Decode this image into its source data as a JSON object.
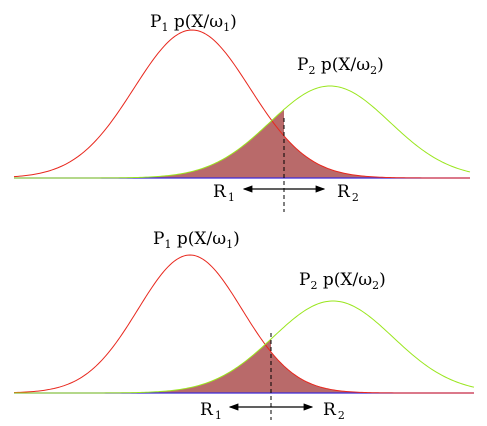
{
  "panels": [
    {
      "curve1_label": {
        "prefix": "P",
        "prefix_sub": "1",
        "mid": " p(X/ω",
        "sub": "1",
        "suffix": ")"
      },
      "curve2_label": {
        "prefix": "P",
        "prefix_sub": "2",
        "mid": " p(X/ω",
        "sub": "2",
        "suffix": ")"
      },
      "region_left": {
        "main": "R",
        "sub": "1"
      },
      "region_right": {
        "main": "R",
        "sub": "2"
      }
    },
    {
      "curve1_label": {
        "prefix": "P",
        "prefix_sub": "1",
        "mid": " p(X/ω",
        "sub": "1",
        "suffix": ")"
      },
      "curve2_label": {
        "prefix": "P",
        "prefix_sub": "2",
        "mid": " p(X/ω",
        "sub": "2",
        "suffix": ")"
      },
      "region_left": {
        "main": "R",
        "sub": "1"
      },
      "region_right": {
        "main": "R",
        "sub": "2"
      }
    }
  ],
  "colors": {
    "curve1": "#e8281e",
    "curve2": "#9ae61e",
    "error_area": "#b96a6a",
    "baseline": "#3d2bd6",
    "text": "#000000"
  }
}
